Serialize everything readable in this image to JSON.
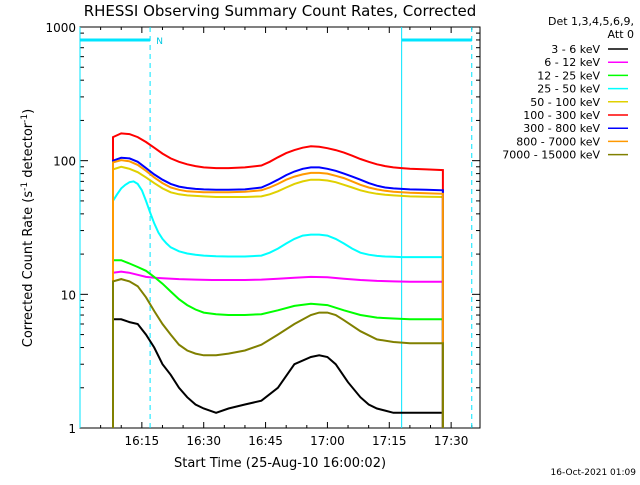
{
  "chart_data": {
    "type": "line",
    "title": "RHESSI Observing Summary Count Rates, Corrected",
    "xlabel": "Start Time (25-Aug-10 16:00:02)",
    "ylabel_main": "Corrected Count Rate (s",
    "ylabel_sup1": "-1",
    "ylabel_mid": " detector",
    "ylabel_sup2": "-1",
    "ylabel_end": ")",
    "footer_timestamp": "16-Oct-2021 01:09",
    "x_unit": "minutes after 16:00:02",
    "xlim": [
      0,
      97
    ],
    "ylim": [
      1,
      1000
    ],
    "y_scale": "log",
    "x_ticks": [
      {
        "v": 15,
        "label": "16:15"
      },
      {
        "v": 30,
        "label": "16:30"
      },
      {
        "v": 45,
        "label": "16:45"
      },
      {
        "v": 60,
        "label": "17:00"
      },
      {
        "v": 75,
        "label": "17:15"
      },
      {
        "v": 90,
        "label": "17:30"
      }
    ],
    "y_ticks": [
      {
        "v": 1,
        "label": "1"
      },
      {
        "v": 10,
        "label": "10"
      },
      {
        "v": 100,
        "label": "100"
      },
      {
        "v": 1000,
        "label": "1000"
      }
    ],
    "legend_header": [
      "Det 1,3,4,5,6,9,",
      "Att 0"
    ],
    "legend_position": "right",
    "series": [
      {
        "name": "3 - 6 keV",
        "color": "#000000",
        "x": [
          8,
          10,
          12,
          14,
          16,
          18,
          20,
          22,
          24,
          26,
          28,
          30,
          33,
          36,
          40,
          44,
          48,
          52,
          56,
          58,
          60,
          62,
          65,
          68,
          70,
          72,
          74,
          76,
          78,
          80,
          82,
          84,
          86,
          88
        ],
        "y": [
          6.5,
          6.5,
          6.2,
          6.0,
          5.0,
          4.0,
          3.0,
          2.5,
          2.0,
          1.7,
          1.5,
          1.4,
          1.3,
          1.4,
          1.5,
          1.6,
          2.0,
          3.0,
          3.4,
          3.5,
          3.4,
          3.0,
          2.2,
          1.7,
          1.5,
          1.4,
          1.35,
          1.3,
          1.3,
          1.3,
          1.3,
          1.3,
          1.3,
          1.3
        ]
      },
      {
        "name": "6 - 12 keV",
        "color": "#ff00ff",
        "x": [
          8,
          10,
          12,
          14,
          16,
          18,
          20,
          24,
          28,
          32,
          36,
          40,
          44,
          48,
          52,
          56,
          60,
          64,
          68,
          72,
          76,
          80,
          84,
          88
        ],
        "y": [
          14.5,
          14.8,
          14.5,
          14.0,
          13.5,
          13.3,
          13.2,
          13.0,
          12.9,
          12.8,
          12.8,
          12.8,
          12.9,
          13.1,
          13.3,
          13.5,
          13.4,
          13.1,
          12.8,
          12.6,
          12.5,
          12.4,
          12.4,
          12.4
        ]
      },
      {
        "name": "12 - 25 keV",
        "color": "#00ff00",
        "x": [
          8,
          10,
          12,
          14,
          16,
          18,
          20,
          22,
          24,
          26,
          28,
          30,
          33,
          36,
          40,
          44,
          48,
          52,
          56,
          60,
          64,
          68,
          72,
          76,
          80,
          84,
          88
        ],
        "y": [
          18,
          18,
          17,
          16,
          15,
          13.5,
          12,
          10.5,
          9.2,
          8.3,
          7.7,
          7.3,
          7.1,
          7.0,
          7.0,
          7.1,
          7.6,
          8.2,
          8.5,
          8.3,
          7.6,
          7.0,
          6.7,
          6.6,
          6.5,
          6.5,
          6.5
        ]
      },
      {
        "name": "25 - 50 keV",
        "color": "#00ffff",
        "x": [
          8,
          9,
          10,
          11,
          12,
          13,
          14,
          15,
          16,
          17,
          18,
          19,
          20,
          21,
          22,
          24,
          26,
          28,
          30,
          33,
          36,
          40,
          44,
          46,
          48,
          50,
          52,
          54,
          56,
          58,
          60,
          62,
          64,
          66,
          68,
          70,
          72,
          74,
          76,
          78,
          80,
          84,
          88
        ],
        "y": [
          50,
          56,
          62,
          66,
          69,
          70,
          67,
          60,
          50,
          41,
          34,
          29,
          26,
          24,
          22.5,
          21,
          20.2,
          19.8,
          19.5,
          19.3,
          19.2,
          19.2,
          19.5,
          20.5,
          22,
          24,
          26,
          27.5,
          28,
          28,
          27.5,
          26,
          24,
          22,
          20.5,
          19.8,
          19.4,
          19.2,
          19.1,
          19.0,
          19.0,
          19.0,
          19.0
        ]
      },
      {
        "name": "50 - 100 keV",
        "color": "#e0d000",
        "x": [
          8,
          10,
          12,
          14,
          16,
          18,
          20,
          22,
          24,
          26,
          28,
          30,
          33,
          36,
          40,
          44,
          46,
          48,
          50,
          52,
          54,
          56,
          58,
          60,
          62,
          64,
          66,
          68,
          70,
          72,
          74,
          76,
          78,
          80,
          84,
          88
        ],
        "y": [
          86,
          90,
          87,
          82,
          75,
          68,
          62,
          58,
          56,
          55,
          54.5,
          54,
          53.5,
          53.5,
          53.5,
          54,
          56,
          59,
          63,
          67,
          70,
          72,
          72,
          71,
          69,
          66,
          63,
          60,
          58,
          56.5,
          55.5,
          55,
          54.5,
          54,
          53.8,
          53.5
        ]
      },
      {
        "name": "100 - 300 keV",
        "color": "#ff0000",
        "x": [
          8,
          10,
          12,
          14,
          16,
          18,
          20,
          22,
          24,
          26,
          28,
          30,
          33,
          36,
          40,
          44,
          46,
          48,
          50,
          52,
          54,
          56,
          58,
          60,
          62,
          64,
          66,
          68,
          70,
          72,
          74,
          76,
          78,
          80,
          84,
          88
        ],
        "y": [
          150,
          160,
          158,
          150,
          138,
          125,
          113,
          104,
          98,
          94,
          91,
          89,
          88,
          88,
          89,
          92,
          98,
          106,
          114,
          120,
          125,
          128,
          127,
          124,
          120,
          115,
          109,
          103,
          98,
          94,
          91,
          89,
          88,
          87,
          86,
          85
        ]
      },
      {
        "name": "300 - 800 keV",
        "color": "#0000ff",
        "x": [
          8,
          10,
          12,
          14,
          16,
          18,
          20,
          22,
          24,
          26,
          28,
          30,
          33,
          36,
          40,
          44,
          46,
          48,
          50,
          52,
          54,
          56,
          58,
          60,
          62,
          64,
          66,
          68,
          70,
          72,
          74,
          76,
          78,
          80,
          84,
          88
        ],
        "y": [
          100,
          105,
          104,
          98,
          88,
          79,
          72,
          67,
          64,
          62.5,
          61.5,
          61,
          60.5,
          60.5,
          61,
          63,
          67,
          72,
          78,
          83,
          87,
          89,
          89,
          87,
          84,
          80,
          76,
          72,
          68,
          65,
          63,
          62,
          61.5,
          61,
          60.5,
          60
        ]
      },
      {
        "name": "800 - 7000 keV",
        "color": "#ff9900",
        "x": [
          8,
          10,
          12,
          14,
          16,
          18,
          20,
          22,
          24,
          26,
          28,
          30,
          33,
          36,
          40,
          44,
          46,
          48,
          50,
          52,
          54,
          56,
          58,
          60,
          62,
          64,
          66,
          68,
          70,
          72,
          74,
          76,
          78,
          80,
          84,
          88
        ],
        "y": [
          97,
          101,
          99,
          93,
          84,
          75,
          68,
          63,
          60.5,
          59,
          58.5,
          58,
          58,
          58,
          58.5,
          60,
          63,
          67,
          72,
          76,
          79,
          81,
          81,
          80,
          77,
          74,
          70,
          66,
          63,
          61,
          59.5,
          58.5,
          58,
          57.5,
          57,
          56.5
        ]
      },
      {
        "name": "7000 - 15000 keV",
        "color": "#808000",
        "x": [
          8,
          10,
          12,
          14,
          16,
          18,
          20,
          22,
          24,
          26,
          28,
          30,
          33,
          36,
          40,
          44,
          48,
          52,
          56,
          58,
          60,
          62,
          64,
          68,
          72,
          76,
          80,
          84,
          88
        ],
        "y": [
          12.5,
          13,
          12.5,
          11.5,
          9.5,
          7.5,
          6.0,
          5.0,
          4.2,
          3.8,
          3.6,
          3.5,
          3.5,
          3.6,
          3.8,
          4.2,
          5.0,
          6.0,
          7.0,
          7.3,
          7.3,
          7.0,
          6.4,
          5.3,
          4.6,
          4.4,
          4.3,
          4.3,
          4.3
        ]
      }
    ],
    "markers": {
      "cyan_bar_segments": [
        [
          0,
          17
        ],
        [
          78,
          95
        ]
      ],
      "cyan_solid_vlines": [
        0,
        78
      ],
      "cyan_dashed_vlines": [
        17,
        95
      ],
      "label_N": {
        "x": 18,
        "text": "N"
      }
    }
  }
}
